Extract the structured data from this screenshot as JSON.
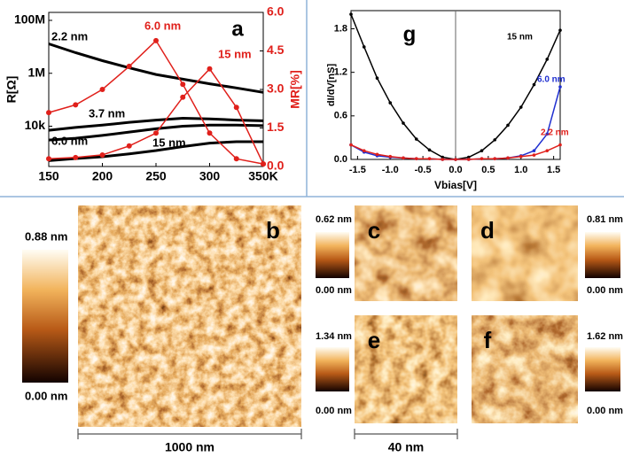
{
  "chart_data": [
    {
      "type": "line",
      "letter": "a",
      "ylabel": "R[Ω]",
      "y2label": "MR[%]",
      "log_y": true,
      "xlim": [
        150,
        350
      ],
      "xticks": [
        150,
        200,
        250,
        300,
        {
          "value": 350,
          "label": "350K"
        }
      ],
      "ylim": [
        300,
        200000000
      ],
      "yticks": [
        {
          "value": 10000,
          "label": "10k"
        },
        {
          "value": 1000000,
          "label": "1M"
        },
        {
          "value": 100000000,
          "label": "100M"
        }
      ],
      "y2lim": [
        0,
        6
      ],
      "y2ticks": [
        {
          "value": 0,
          "label": "0.0"
        },
        1.5,
        {
          "value": 3,
          "label": "3.0"
        },
        4.5,
        {
          "value": 6,
          "label": "6.0"
        }
      ],
      "x": [
        150,
        175,
        200,
        225,
        250,
        275,
        300,
        325,
        350
      ],
      "series": [
        {
          "name": "2.2 nm",
          "color": "#000000",
          "values": [
            13000000,
            6000000,
            3000000,
            1600000,
            900000,
            600000,
            400000,
            280000,
            190000
          ]
        },
        {
          "name": "3.7 nm",
          "color": "#000000",
          "values": [
            7000,
            9000,
            11000,
            14000,
            17000,
            20000,
            19000,
            17000,
            16000
          ]
        },
        {
          "name": "6.0 nm",
          "color": "#000000",
          "values": [
            3000,
            3500,
            4500,
            6000,
            8000,
            10000,
            11000,
            11000,
            10500
          ]
        },
        {
          "name": "15 nm",
          "color": "#000000",
          "values": [
            500,
            600,
            700,
            900,
            1200,
            1700,
            2300,
            2600,
            2600
          ]
        },
        {
          "name": "6.0 nm",
          "color": "#e0201b",
          "axis": "y2",
          "markers": true,
          "values": [
            2.1,
            2.4,
            3.0,
            3.9,
            4.9,
            3.2,
            1.3,
            0.3,
            0.1
          ]
        },
        {
          "name": "15 nm",
          "color": "#e0201b",
          "axis": "y2",
          "markers": true,
          "values": [
            0.3,
            0.35,
            0.45,
            0.8,
            1.3,
            2.7,
            3.8,
            2.3,
            0.1
          ]
        }
      ]
    },
    {
      "type": "line",
      "letter": "g",
      "ylabel": "dI/dV[nS]",
      "xlabel": "Vbias[V]",
      "xlim": [
        -1.6,
        1.6
      ],
      "xticks": [
        {
          "value": -1.5,
          "label": "-1.5"
        },
        {
          "value": -1,
          "label": "-1.0"
        },
        {
          "value": -0.5,
          "label": "-0.5"
        },
        {
          "value": 0,
          "label": "0.0"
        },
        0.5,
        {
          "value": 1,
          "label": "1.0"
        },
        1.5
      ],
      "ylim": [
        0,
        2.05
      ],
      "yticks": [
        {
          "value": 0,
          "label": "0.0"
        },
        0.6,
        1.2,
        1.8
      ],
      "x": [
        -1.6,
        -1.4,
        -1.2,
        -1.0,
        -0.8,
        -0.6,
        -0.4,
        -0.2,
        0,
        0.2,
        0.4,
        0.6,
        0.8,
        1.0,
        1.2,
        1.4,
        1.6
      ],
      "series": [
        {
          "name": "15 nm",
          "color": "#000000",
          "markers": true,
          "values": [
            2.0,
            1.55,
            1.12,
            0.78,
            0.5,
            0.28,
            0.13,
            0.03,
            0,
            0.03,
            0.12,
            0.27,
            0.47,
            0.72,
            1.03,
            1.38,
            1.78
          ]
        },
        {
          "name": "6.0 nm",
          "color": "#1f2fd0",
          "markers": true,
          "values": [
            0.2,
            0.1,
            0.05,
            0.03,
            0.02,
            0.01,
            0.01,
            0,
            0,
            0,
            0.01,
            0.01,
            0.02,
            0.05,
            0.12,
            0.35,
            1.0
          ]
        },
        {
          "name": "2.2 nm",
          "color": "#e0201b",
          "markers": true,
          "values": [
            0.2,
            0.12,
            0.07,
            0.04,
            0.02,
            0.01,
            0.01,
            0,
            0,
            0,
            0.01,
            0.01,
            0.02,
            0.04,
            0.06,
            0.12,
            0.2
          ]
        }
      ]
    }
  ],
  "image_panels": [
    {
      "letter": "b",
      "max_label": "0.88 nm",
      "min_label": "0.00 nm"
    },
    {
      "letter": "c",
      "max_label": "0.62 nm",
      "min_label": "0.00 nm"
    },
    {
      "letter": "d",
      "max_label": "0.81 nm",
      "min_label": "0.00 nm"
    },
    {
      "letter": "e",
      "max_label": "1.34 nm",
      "min_label": "0.00 nm"
    },
    {
      "letter": "f",
      "max_label": "1.62 nm",
      "min_label": "0.00 nm"
    }
  ],
  "scale_bars": [
    "1000 nm",
    "40 nm"
  ]
}
